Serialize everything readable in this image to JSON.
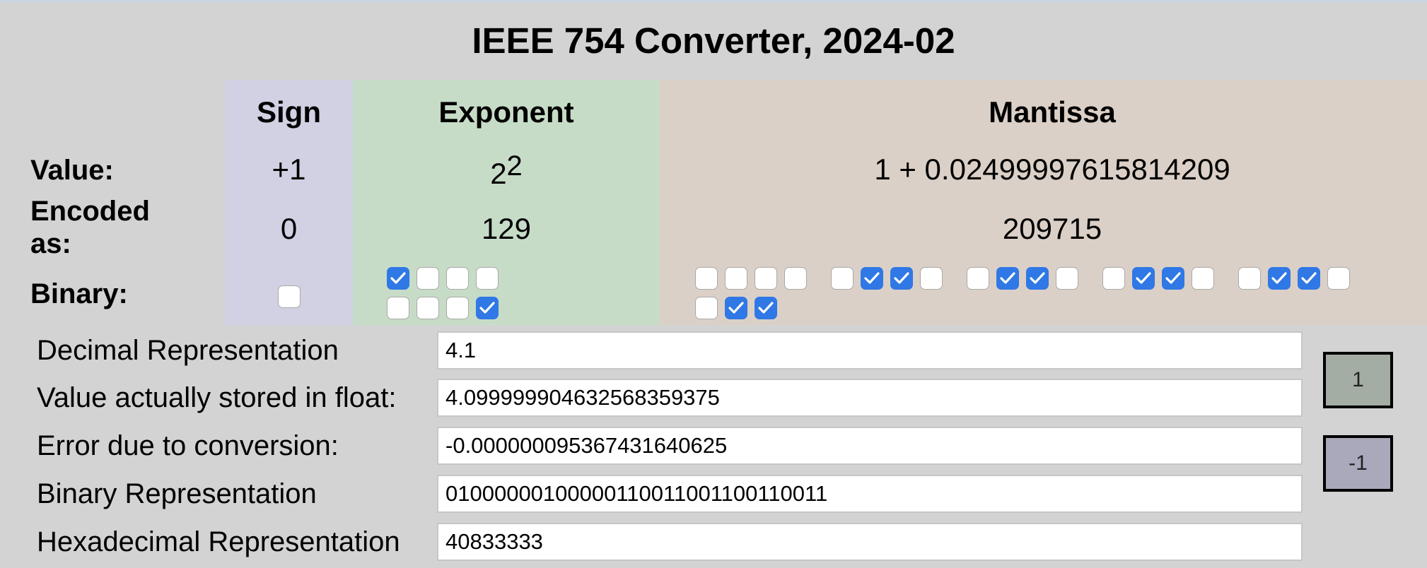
{
  "title": "IEEE 754 Converter, 2024-02",
  "headers": {
    "sign": "Sign",
    "exponent": "Exponent",
    "mantissa": "Mantissa"
  },
  "row_labels": {
    "value": "Value:",
    "encoded": "Encoded as:",
    "binary": "Binary:"
  },
  "sign": {
    "value": "+1",
    "encoded": "0",
    "bits": [
      0
    ]
  },
  "exponent": {
    "value_base": "2",
    "value_power": "2",
    "encoded": "129",
    "bits": [
      1,
      0,
      0,
      0,
      0,
      0,
      0,
      1
    ]
  },
  "mantissa": {
    "value": "1 + 0.02499997615814209",
    "encoded": "209715",
    "bits": [
      0,
      0,
      0,
      0,
      0,
      1,
      1,
      0,
      0,
      1,
      1,
      0,
      0,
      1,
      1,
      0,
      0,
      1,
      1,
      0,
      0,
      1,
      1
    ]
  },
  "fields": [
    {
      "label": "Decimal Representation",
      "value": "4.1"
    },
    {
      "label": "Value actually stored in float:",
      "value": "4.099999904632568359375"
    },
    {
      "label": "Error due to conversion:",
      "value": "-0.000000095367431640625"
    },
    {
      "label": "Binary Representation",
      "value": "01000000100000110011001100110011"
    },
    {
      "label": "Hexadecimal Representation",
      "value": "40833333"
    }
  ],
  "buttons": {
    "increment": "1",
    "decrement": "-1"
  },
  "colors": {
    "checked": "#2f78e6",
    "sign_bg": "#d1d1e3",
    "exponent_bg": "#c7dcc7",
    "mantissa_bg": "#dbd0c7"
  }
}
